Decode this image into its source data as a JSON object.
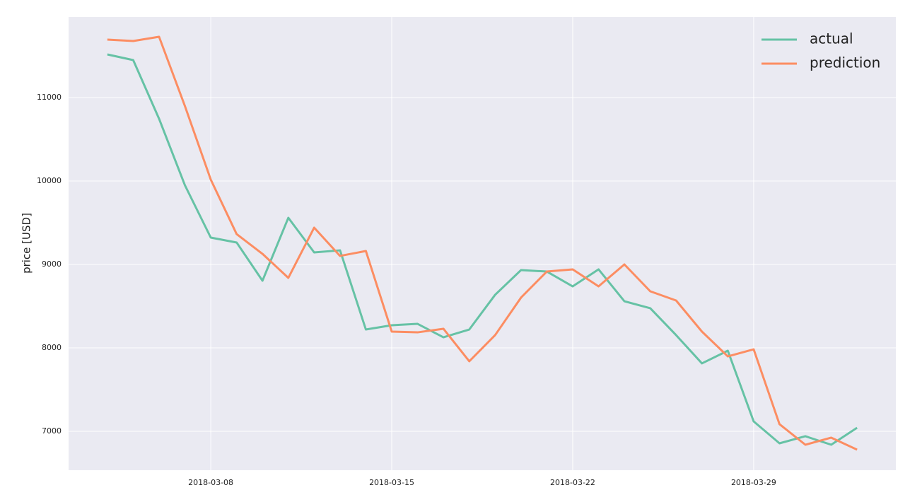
{
  "chart_data": {
    "type": "line",
    "ylabel": "price [USD]",
    "x": [
      "2018-03-04",
      "2018-03-05",
      "2018-03-06",
      "2018-03-07",
      "2018-03-08",
      "2018-03-09",
      "2018-03-10",
      "2018-03-11",
      "2018-03-12",
      "2018-03-13",
      "2018-03-14",
      "2018-03-15",
      "2018-03-16",
      "2018-03-17",
      "2018-03-18",
      "2018-03-19",
      "2018-03-20",
      "2018-03-21",
      "2018-03-22",
      "2018-03-23",
      "2018-03-24",
      "2018-03-25",
      "2018-03-26",
      "2018-03-27",
      "2018-03-28",
      "2018-03-29",
      "2018-03-30",
      "2018-03-31",
      "2018-04-01",
      "2018-04-02"
    ],
    "series": [
      {
        "name": "actual",
        "color": "#66c2a5",
        "values": [
          11517,
          11449,
          10746,
          9949,
          9322,
          9263,
          8805,
          9559,
          9144,
          9169,
          8220,
          8271,
          8288,
          8127,
          8220,
          8636,
          8932,
          8915,
          8737,
          8941,
          8559,
          8475,
          8153,
          7814,
          7966,
          7119,
          6856,
          6941,
          6839,
          7042
        ]
      },
      {
        "name": "prediction",
        "color": "#fc8d62",
        "values": [
          11695,
          11678,
          11729,
          10898,
          10017,
          9364,
          9127,
          8839,
          9441,
          9102,
          9161,
          8195,
          8186,
          8229,
          7839,
          8153,
          8602,
          8915,
          8941,
          8737,
          9000,
          8678,
          8568,
          8195,
          7898,
          7983,
          7085,
          6839,
          6924,
          6780
        ]
      }
    ],
    "xlim": [
      "2018-03-02T12:00Z",
      "2018-04-03T12:00Z"
    ],
    "xticks": [
      "2018-03-08",
      "2018-03-15",
      "2018-03-22",
      "2018-03-29"
    ],
    "ylim": [
      6534,
      11966
    ],
    "yticks": [
      7000,
      8000,
      9000,
      10000,
      11000
    ],
    "grid": true,
    "legend": "upper right"
  }
}
